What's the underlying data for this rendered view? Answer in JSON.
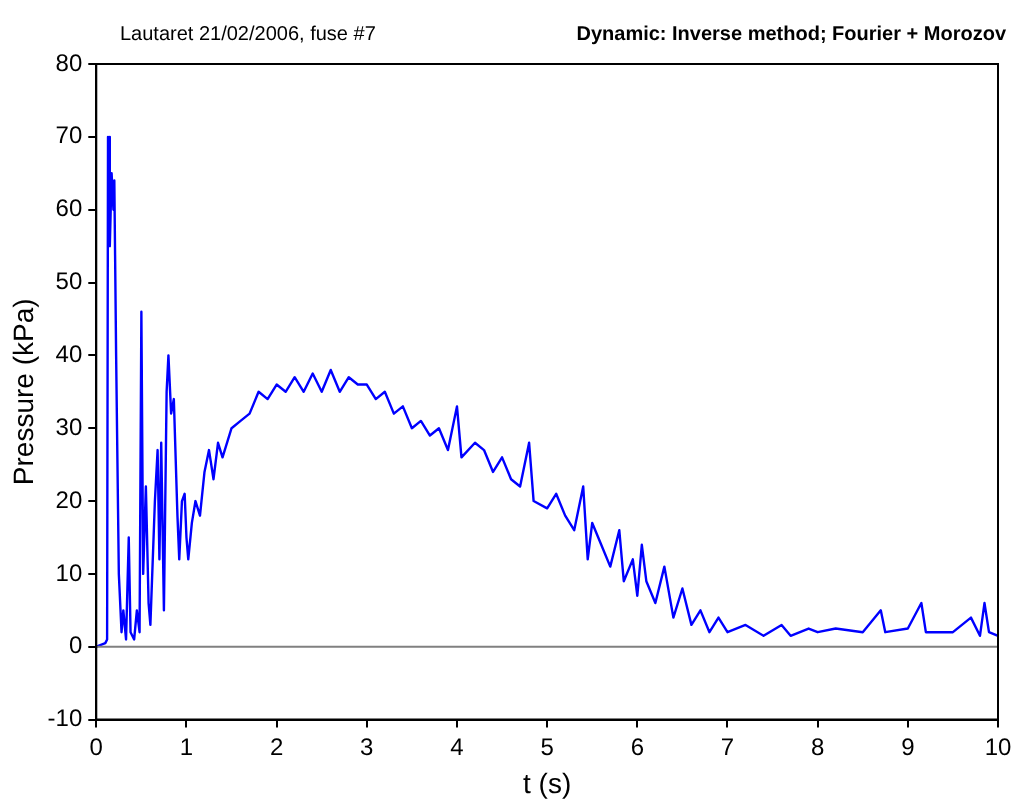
{
  "chart_data": {
    "type": "line",
    "title": "Lautaret 21/02/2006, fuse #7",
    "subtitle": "Dynamic: Inverse method; Fourier + Morozov",
    "xlabel": "t (s)",
    "ylabel": "Pressure (kPa)",
    "x": [
      0,
      0.1,
      0.12,
      0.13,
      0.15,
      0.17,
      0.19,
      0.2,
      0.22,
      0.25,
      0.28,
      0.3,
      0.33,
      0.36,
      0.38,
      0.42,
      0.45,
      0.48,
      0.5,
      0.52,
      0.55,
      0.58,
      0.6,
      0.65,
      0.68,
      0.7,
      0.72,
      0.75,
      0.78,
      0.8,
      0.83,
      0.86,
      0.9,
      0.92,
      0.95,
      0.98,
      1.0,
      1.02,
      1.06,
      1.1,
      1.15,
      1.2,
      1.25,
      1.3,
      1.35,
      1.4,
      1.5,
      1.6,
      1.7,
      1.8,
      1.9,
      2.0,
      2.1,
      2.2,
      2.3,
      2.4,
      2.5,
      2.6,
      2.7,
      2.8,
      2.9,
      3.0,
      3.1,
      3.2,
      3.3,
      3.4,
      3.5,
      3.6,
      3.7,
      3.8,
      3.9,
      4.0,
      4.05,
      4.2,
      4.3,
      4.4,
      4.5,
      4.6,
      4.7,
      4.8,
      4.85,
      5.0,
      5.1,
      5.2,
      5.3,
      5.4,
      5.45,
      5.5,
      5.6,
      5.7,
      5.8,
      5.85,
      5.95,
      6.0,
      6.05,
      6.1,
      6.2,
      6.3,
      6.4,
      6.5,
      6.6,
      6.7,
      6.8,
      6.9,
      7.0,
      7.2,
      7.4,
      7.6,
      7.7,
      7.9,
      8.0,
      8.2,
      8.5,
      8.7,
      8.75,
      9.0,
      9.15,
      9.2,
      9.5,
      9.7,
      9.8,
      9.85,
      9.9,
      10
    ],
    "series": [
      {
        "color": "#0000ff",
        "values": [
          0,
          0.5,
          1,
          70,
          55,
          65,
          60,
          64,
          40,
          10,
          2,
          5,
          1,
          15,
          2,
          1,
          5,
          2,
          46,
          10,
          22,
          6,
          3,
          20,
          27,
          12,
          28,
          5,
          35,
          40,
          32,
          34,
          18,
          12,
          20,
          21,
          15,
          12,
          17,
          20,
          18,
          24,
          27,
          23,
          28,
          26,
          30,
          31,
          32,
          35,
          34,
          36,
          35,
          37,
          35,
          37.5,
          35,
          38,
          35,
          37,
          36,
          36,
          34,
          35,
          32,
          33,
          30,
          31,
          29,
          30,
          27,
          33,
          26,
          28,
          27,
          24,
          26,
          23,
          22,
          28,
          20,
          19,
          21,
          18,
          16,
          22,
          12,
          17,
          14,
          11,
          16,
          9,
          12,
          7,
          14,
          9,
          6,
          11,
          4,
          8,
          3,
          5,
          2,
          4,
          2,
          3,
          1.5,
          3,
          1.5,
          2.5,
          2,
          2.5,
          2,
          5,
          2,
          2.5,
          6,
          2,
          2,
          4,
          1.5,
          6,
          2,
          1.5
        ]
      }
    ],
    "xlim": [
      0,
      10
    ],
    "xticks": [
      0,
      1,
      2,
      3,
      4,
      5,
      6,
      7,
      8,
      9,
      10
    ],
    "ylim": [
      -10,
      80
    ],
    "yticks": [
      -10,
      0,
      10,
      20,
      30,
      40,
      50,
      60,
      70,
      80
    ],
    "ref_lines": [
      {
        "axis": "y",
        "value": 0,
        "color": "#808080"
      }
    ],
    "grid": false,
    "legend": false,
    "marker": "none",
    "line_style": "solid"
  }
}
